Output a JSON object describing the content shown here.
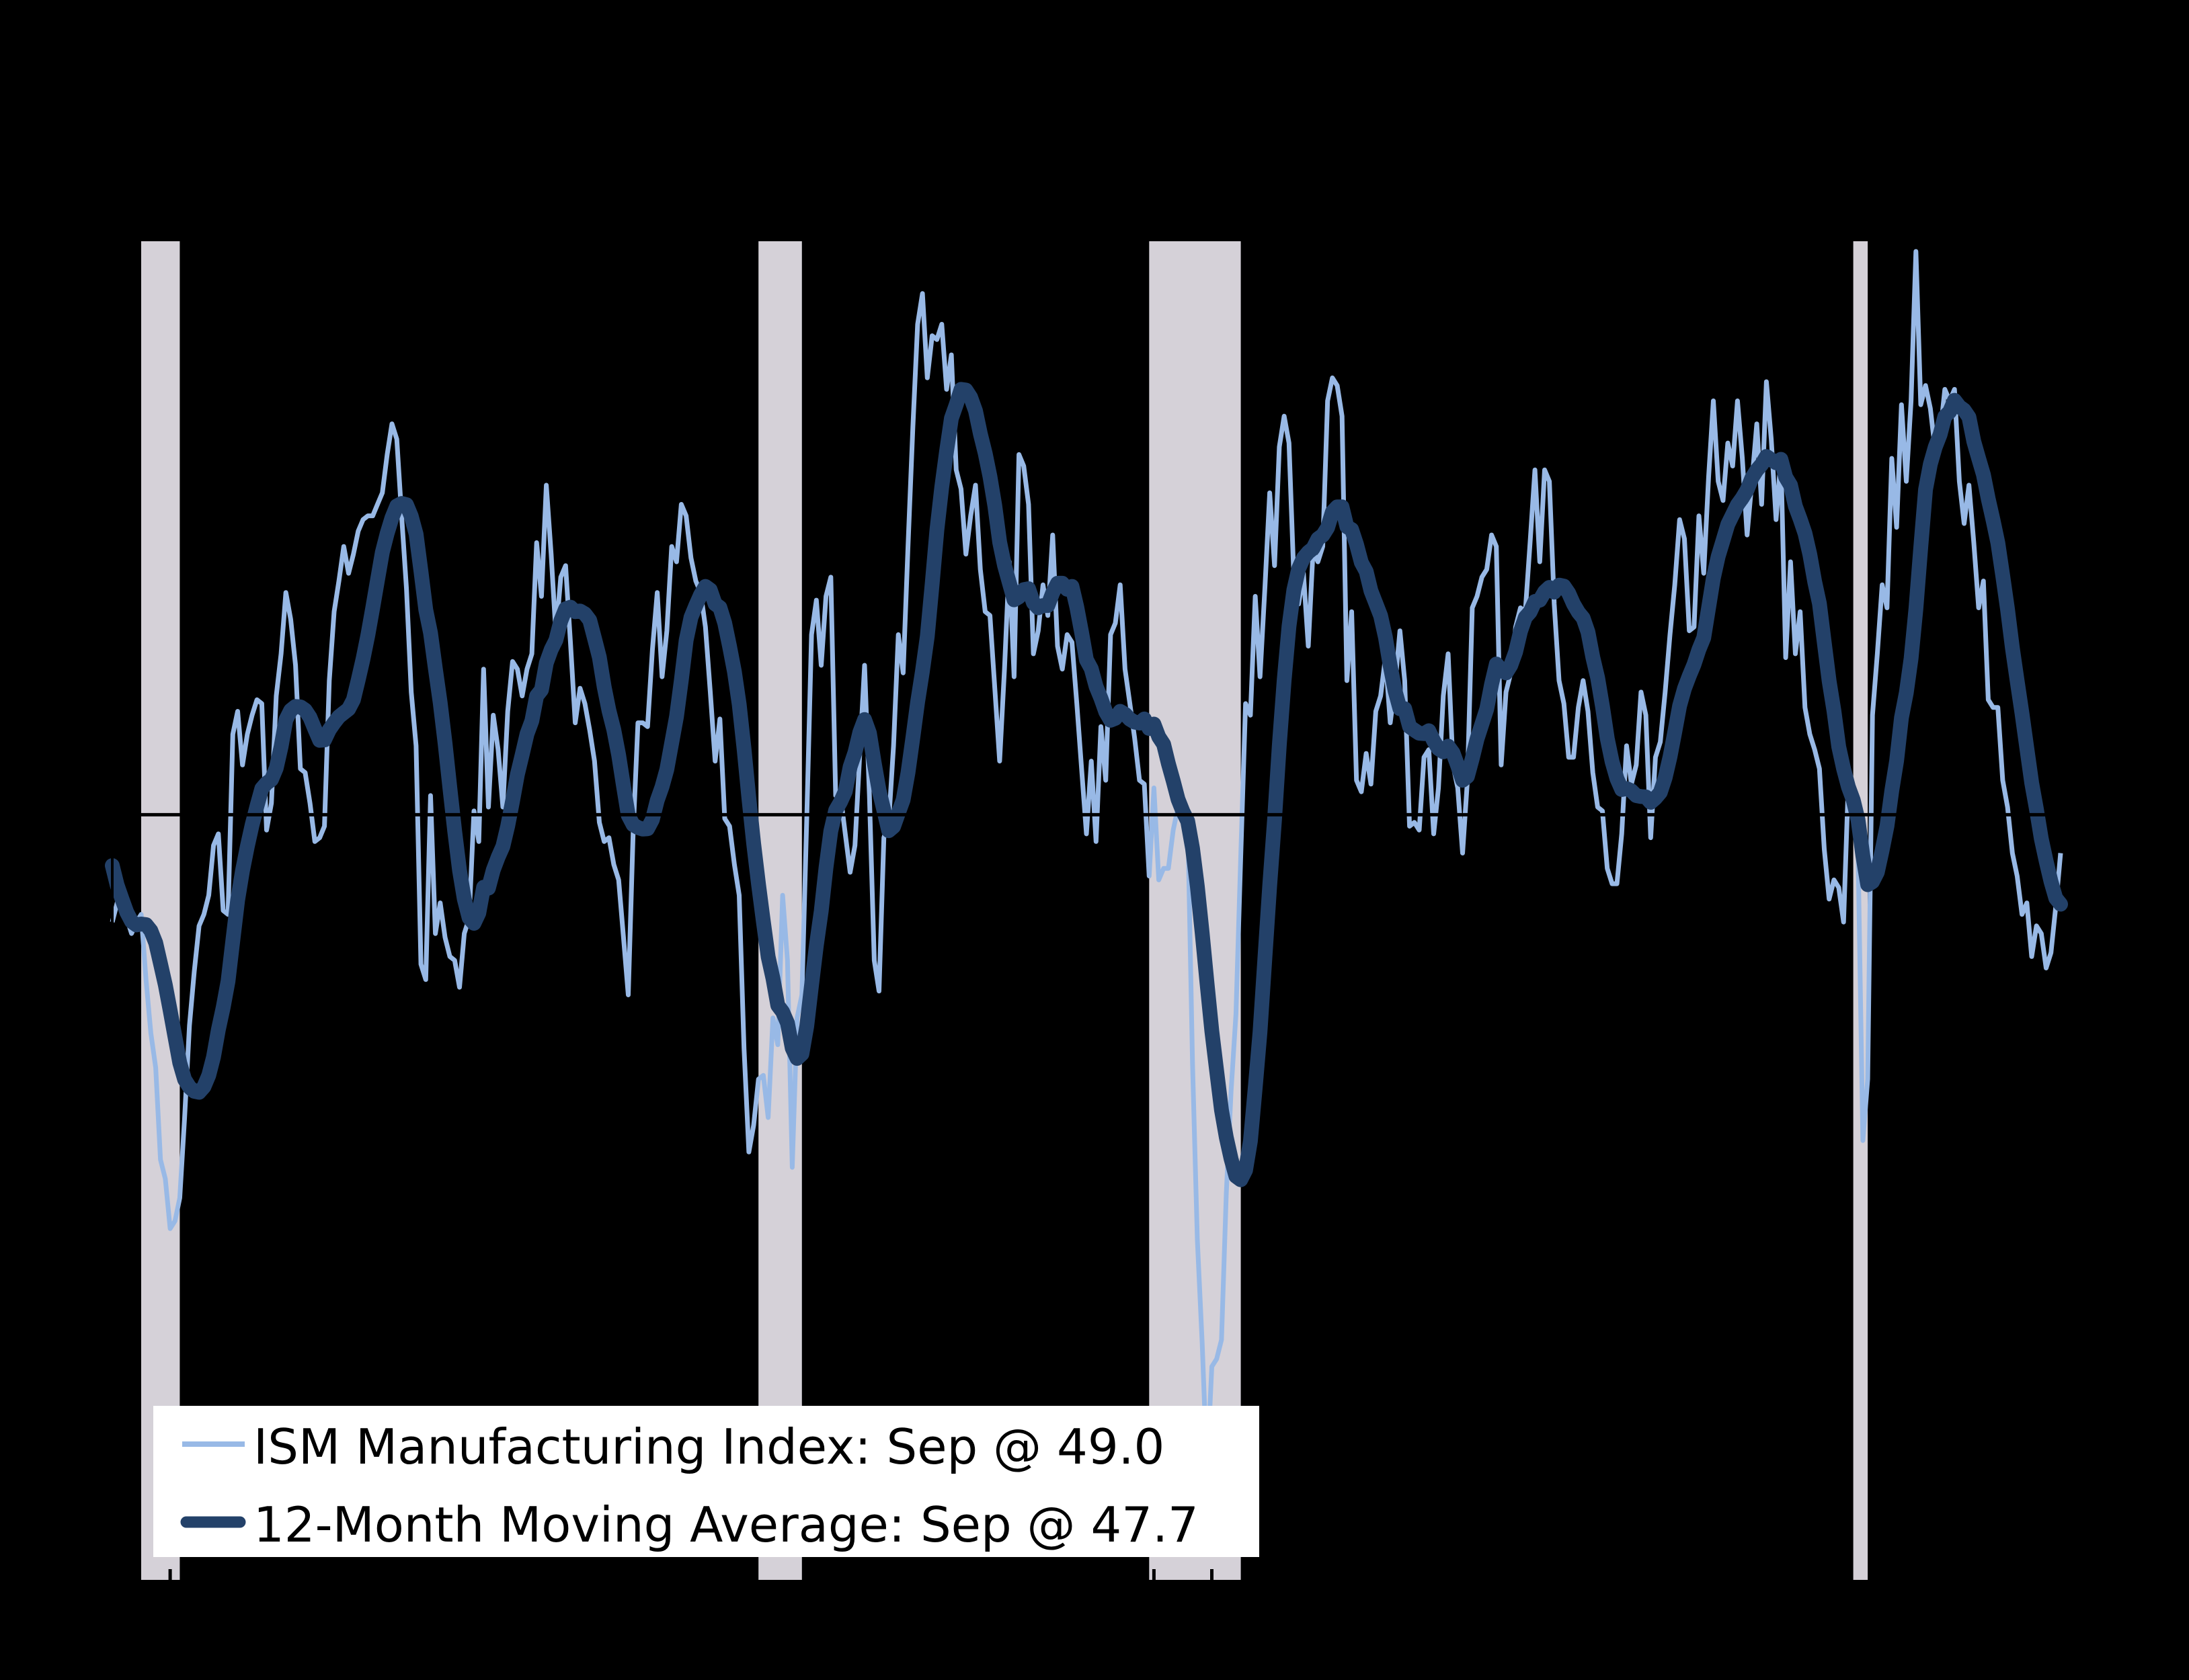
{
  "colors": {
    "background": "#000000",
    "recession_bar": "#d5d1d8",
    "ism_line": "#98b9e6",
    "moving_average_line": "#234169",
    "reference_line": "#000000",
    "axis": "#000000",
    "legend_background": "#ffffff",
    "legend_text": "#000000"
  },
  "legend": {
    "background": "#ffffff",
    "items": [
      {
        "label": "ISM Manufacturing Index: Sep @ 49.0",
        "color": "#98b9e6",
        "line_weight": "thin"
      },
      {
        "label": "12-Month Moving Average: Sep @ 47.7",
        "color": "#234169",
        "line_weight": "thick"
      }
    ]
  },
  "chart_data": {
    "type": "line",
    "title": "",
    "xlabel": "",
    "ylabel": "",
    "x_axis": {
      "start": "1990-01",
      "end": "2023-09",
      "frequency": "monthly",
      "tick_interval": "yearly-january",
      "ticks_inward": true
    },
    "y_axis": {
      "min": 30,
      "max": 65,
      "reference_line": 50
    },
    "grid": false,
    "legend_position": "bottom-left",
    "recession_shading": {
      "description": "NBER recessions shaded gray: Jul1990-Mar1991, Mar2001-Nov2001, Dec2007-Jun2009, Feb2020-Apr2020",
      "spans_months_from_1990_01": [
        [
          6,
          14
        ],
        [
          134,
          143
        ],
        [
          215,
          234
        ],
        [
          361,
          364
        ]
      ]
    },
    "ma_seed_1989": [
      54.6,
      53.8,
      52.4,
      51.5,
      49.8,
      48.3,
      47.1,
      45.9,
      46.2,
      47.2,
      47.5,
      47.2
    ],
    "series": [
      {
        "name": "ISM Manufacturing Index",
        "legend_label": "ISM Manufacturing Index: Sep @ 49.0",
        "color": "#98b9e6",
        "latest": {
          "month": "Sep",
          "value": 49.0
        },
        "values_start": "1990-01",
        "values": [
          47.2,
          47.7,
          48.1,
          47.3,
          46.9,
          47.2,
          47.4,
          45.7,
          44.3,
          43.4,
          41.0,
          40.5,
          39.2,
          39.4,
          40.0,
          42.1,
          44.5,
          45.9,
          47.1,
          47.4,
          47.9,
          49.2,
          49.5,
          47.5,
          47.4,
          52.1,
          52.7,
          51.3,
          52.1,
          52.6,
          53.0,
          52.9,
          49.6,
          50.3,
          53.1,
          54.2,
          55.8,
          55.1,
          53.9,
          51.2,
          51.1,
          50.3,
          49.3,
          49.4,
          49.7,
          53.5,
          55.3,
          56.1,
          57.0,
          56.3,
          56.8,
          57.4,
          57.7,
          57.8,
          57.8,
          58.1,
          58.4,
          59.4,
          60.2,
          59.8,
          57.8,
          55.9,
          53.2,
          51.8,
          46.1,
          45.7,
          50.5,
          46.9,
          47.7,
          46.8,
          46.3,
          46.2,
          45.5,
          46.9,
          47.3,
          50.1,
          49.3,
          53.8,
          50.2,
          52.6,
          51.7,
          50.2,
          52.7,
          54.0,
          53.8,
          53.1,
          53.8,
          54.2,
          57.1,
          55.7,
          58.6,
          56.8,
          54.7,
          56.2,
          56.5,
          54.5,
          52.4,
          53.3,
          52.9,
          52.2,
          51.4,
          49.8,
          49.3,
          49.4,
          48.7,
          48.3,
          46.8,
          45.3,
          49.5,
          52.4,
          52.4,
          52.3,
          54.3,
          55.8,
          53.6,
          54.8,
          57.0,
          56.6,
          58.1,
          57.8,
          56.7,
          56.1,
          55.8,
          54.9,
          53.2,
          51.4,
          52.5,
          49.9,
          49.7,
          48.7,
          47.9,
          43.9,
          41.2,
          41.9,
          43.1,
          43.2,
          42.1,
          44.7,
          44.0,
          47.9,
          46.2,
          40.8,
          44.7,
          45.3,
          49.9,
          54.7,
          55.6,
          53.9,
          55.7,
          56.2,
          50.5,
          50.5,
          49.5,
          48.5,
          49.2,
          51.6,
          53.9,
          50.5,
          46.2,
          45.4,
          49.4,
          49.8,
          51.8,
          54.7,
          53.7,
          57.0,
          60.1,
          62.8,
          63.6,
          61.4,
          62.5,
          62.4,
          62.8,
          61.1,
          62.0,
          59.0,
          58.5,
          56.8,
          57.8,
          58.6,
          56.4,
          55.3,
          55.2,
          53.3,
          51.4,
          53.8,
          56.6,
          53.6,
          59.4,
          59.1,
          58.1,
          54.2,
          54.8,
          56.0,
          55.2,
          57.3,
          54.4,
          53.8,
          54.7,
          54.5,
          52.9,
          51.2,
          49.5,
          51.4,
          49.3,
          52.3,
          50.9,
          54.7,
          55.0,
          56.0,
          53.8,
          52.9,
          52.0,
          50.9,
          50.8,
          48.4,
          50.7,
          48.3,
          48.6,
          48.6,
          49.6,
          50.2,
          50.0,
          49.9,
          43.5,
          38.9,
          36.2,
          32.9,
          35.6,
          35.8,
          36.3,
          40.1,
          42.8,
          44.8,
          48.9,
          52.9,
          52.6,
          55.7,
          53.6,
          55.9,
          58.4,
          56.5,
          59.6,
          60.4,
          59.7,
          56.2,
          55.5,
          56.3,
          54.4,
          56.9,
          56.6,
          57.0,
          60.8,
          61.4,
          61.2,
          60.4,
          53.5,
          55.3,
          50.9,
          50.6,
          51.6,
          50.8,
          52.7,
          53.1,
          54.1,
          52.4,
          53.4,
          54.8,
          53.5,
          49.7,
          49.8,
          49.6,
          51.5,
          51.7,
          49.5,
          50.7,
          53.1,
          54.2,
          51.3,
          50.7,
          49.0,
          50.9,
          55.4,
          55.7,
          56.2,
          56.4,
          57.3,
          57.0,
          51.3,
          53.2,
          53.7,
          54.9,
          55.4,
          55.3,
          57.1,
          59.0,
          56.6,
          59.0,
          58.7,
          55.5,
          53.5,
          52.9,
          51.5,
          51.5,
          52.8,
          53.5,
          52.7,
          51.1,
          50.2,
          50.1,
          48.6,
          48.2,
          48.2,
          49.5,
          51.8,
          50.8,
          51.3,
          53.2,
          52.6,
          49.4,
          51.5,
          51.9,
          53.2,
          54.7,
          56.0,
          57.7,
          57.2,
          54.8,
          54.9,
          57.8,
          56.3,
          58.8,
          60.8,
          58.7,
          58.2,
          59.7,
          59.1,
          60.8,
          59.3,
          57.3,
          58.7,
          60.2,
          58.1,
          61.3,
          59.8,
          57.7,
          59.3,
          54.1,
          56.6,
          54.2,
          55.3,
          52.8,
          52.1,
          51.7,
          51.2,
          49.1,
          47.8,
          48.3,
          48.1,
          47.2,
          50.9,
          50.1,
          49.1,
          41.5,
          43.1,
          52.6,
          54.2,
          56.0,
          55.4,
          59.3,
          57.5,
          60.7,
          58.7,
          60.8,
          64.7,
          60.7,
          61.2,
          60.6,
          59.5,
          59.9,
          61.1,
          60.8,
          61.1,
          58.7,
          57.6,
          58.6,
          57.1,
          55.4,
          56.1,
          53.0,
          52.8,
          52.8,
          50.9,
          50.2,
          49.0,
          48.4,
          47.4,
          47.7,
          46.3,
          47.1,
          46.9,
          46.0,
          46.4,
          47.6,
          49.0
        ]
      },
      {
        "name": "12-Month Moving Average",
        "legend_label": "12-Month Moving Average: Sep @ 47.7",
        "color": "#234169",
        "latest": {
          "month": "Sep",
          "value": 47.7
        },
        "derivation": "trailing 12-month average of the ISM Manufacturing Index series (seeded with 1989 values)"
      }
    ]
  }
}
